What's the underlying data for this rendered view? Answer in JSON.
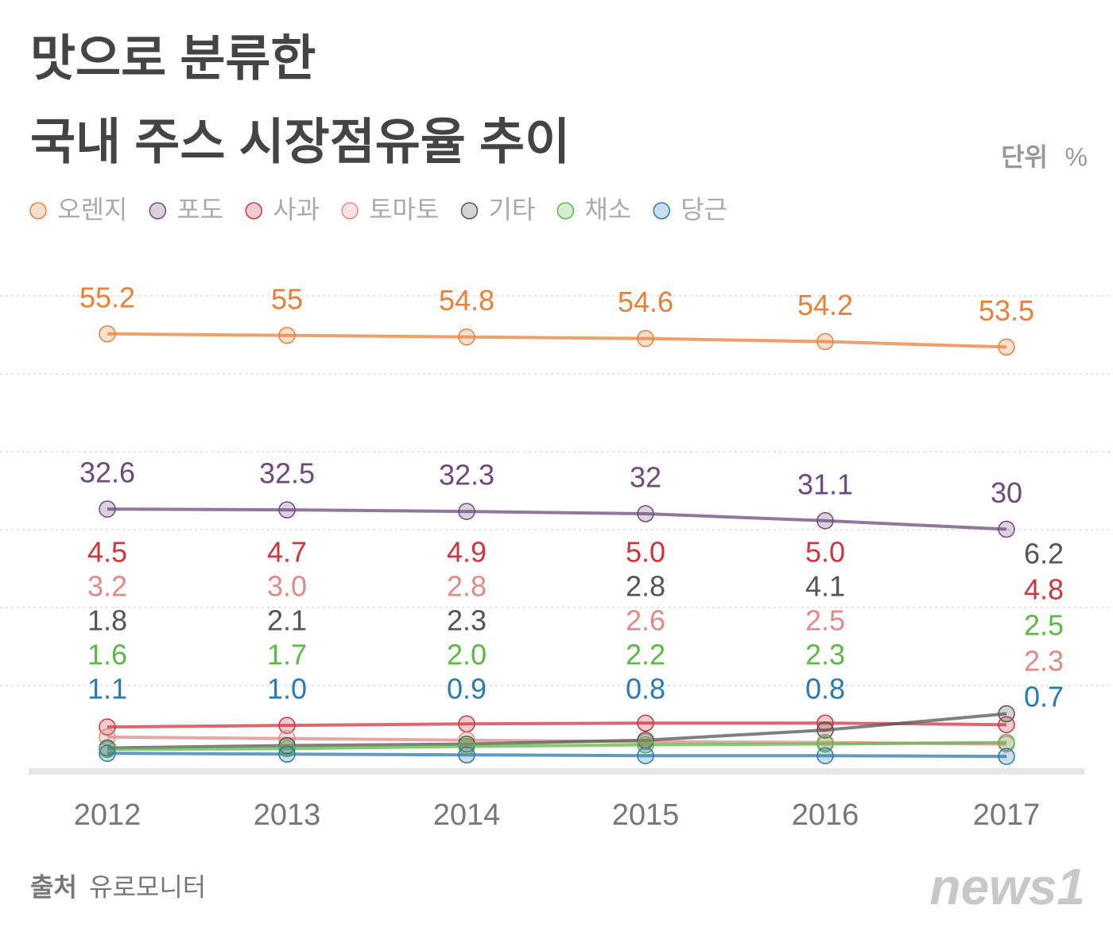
{
  "chart_data": {
    "type": "line",
    "title": [
      "맛으로 분류한",
      "국내 주스 시장점유율 추이"
    ],
    "unit_label": "단위",
    "unit": "%",
    "categories": [
      "2012",
      "2013",
      "2014",
      "2015",
      "2016",
      "2017"
    ],
    "series": [
      {
        "name": "오렌지",
        "color": "#e8803a",
        "values": [
          55.2,
          55,
          54.8,
          54.6,
          54.2,
          53.5
        ],
        "value_labels": [
          "55.2",
          "55",
          "54.8",
          "54.6",
          "54.2",
          "53.5"
        ]
      },
      {
        "name": "포도",
        "color": "#6e4a7c",
        "values": [
          32.6,
          32.5,
          32.3,
          32,
          31.1,
          30
        ],
        "value_labels": [
          "32.6",
          "32.5",
          "32.3",
          "32",
          "31.1",
          "30"
        ]
      },
      {
        "name": "사과",
        "color": "#d0343f",
        "values": [
          4.5,
          4.7,
          4.9,
          5.0,
          5.0,
          4.8
        ],
        "value_labels": [
          "4.5",
          "4.7",
          "4.9",
          "5.0",
          "5.0",
          "4.8"
        ]
      },
      {
        "name": "토마토",
        "color": "#e08a8a",
        "values": [
          3.2,
          3.0,
          2.8,
          2.6,
          2.5,
          2.3
        ],
        "value_labels": [
          "3.2",
          "3.0",
          "2.8",
          "2.6",
          "2.5",
          "2.3"
        ]
      },
      {
        "name": "기타",
        "color": "#555555",
        "values": [
          1.8,
          2.1,
          2.3,
          2.8,
          4.1,
          6.2
        ],
        "value_labels": [
          "1.8",
          "2.1",
          "2.3",
          "2.8",
          "4.1",
          "6.2"
        ]
      },
      {
        "name": "채소",
        "color": "#5db846",
        "values": [
          1.6,
          1.7,
          2.0,
          2.2,
          2.3,
          2.5
        ],
        "value_labels": [
          "1.6",
          "1.7",
          "2.0",
          "2.2",
          "2.3",
          "2.5"
        ]
      },
      {
        "name": "당근",
        "color": "#2a7ab0",
        "values": [
          1.1,
          1.0,
          0.9,
          0.8,
          0.8,
          0.7
        ],
        "value_labels": [
          "1.1",
          "1.0",
          "0.9",
          "0.8",
          "0.8",
          "0.7"
        ]
      }
    ],
    "source_label": "출처",
    "source": "유로모니터",
    "logo": "news1"
  }
}
